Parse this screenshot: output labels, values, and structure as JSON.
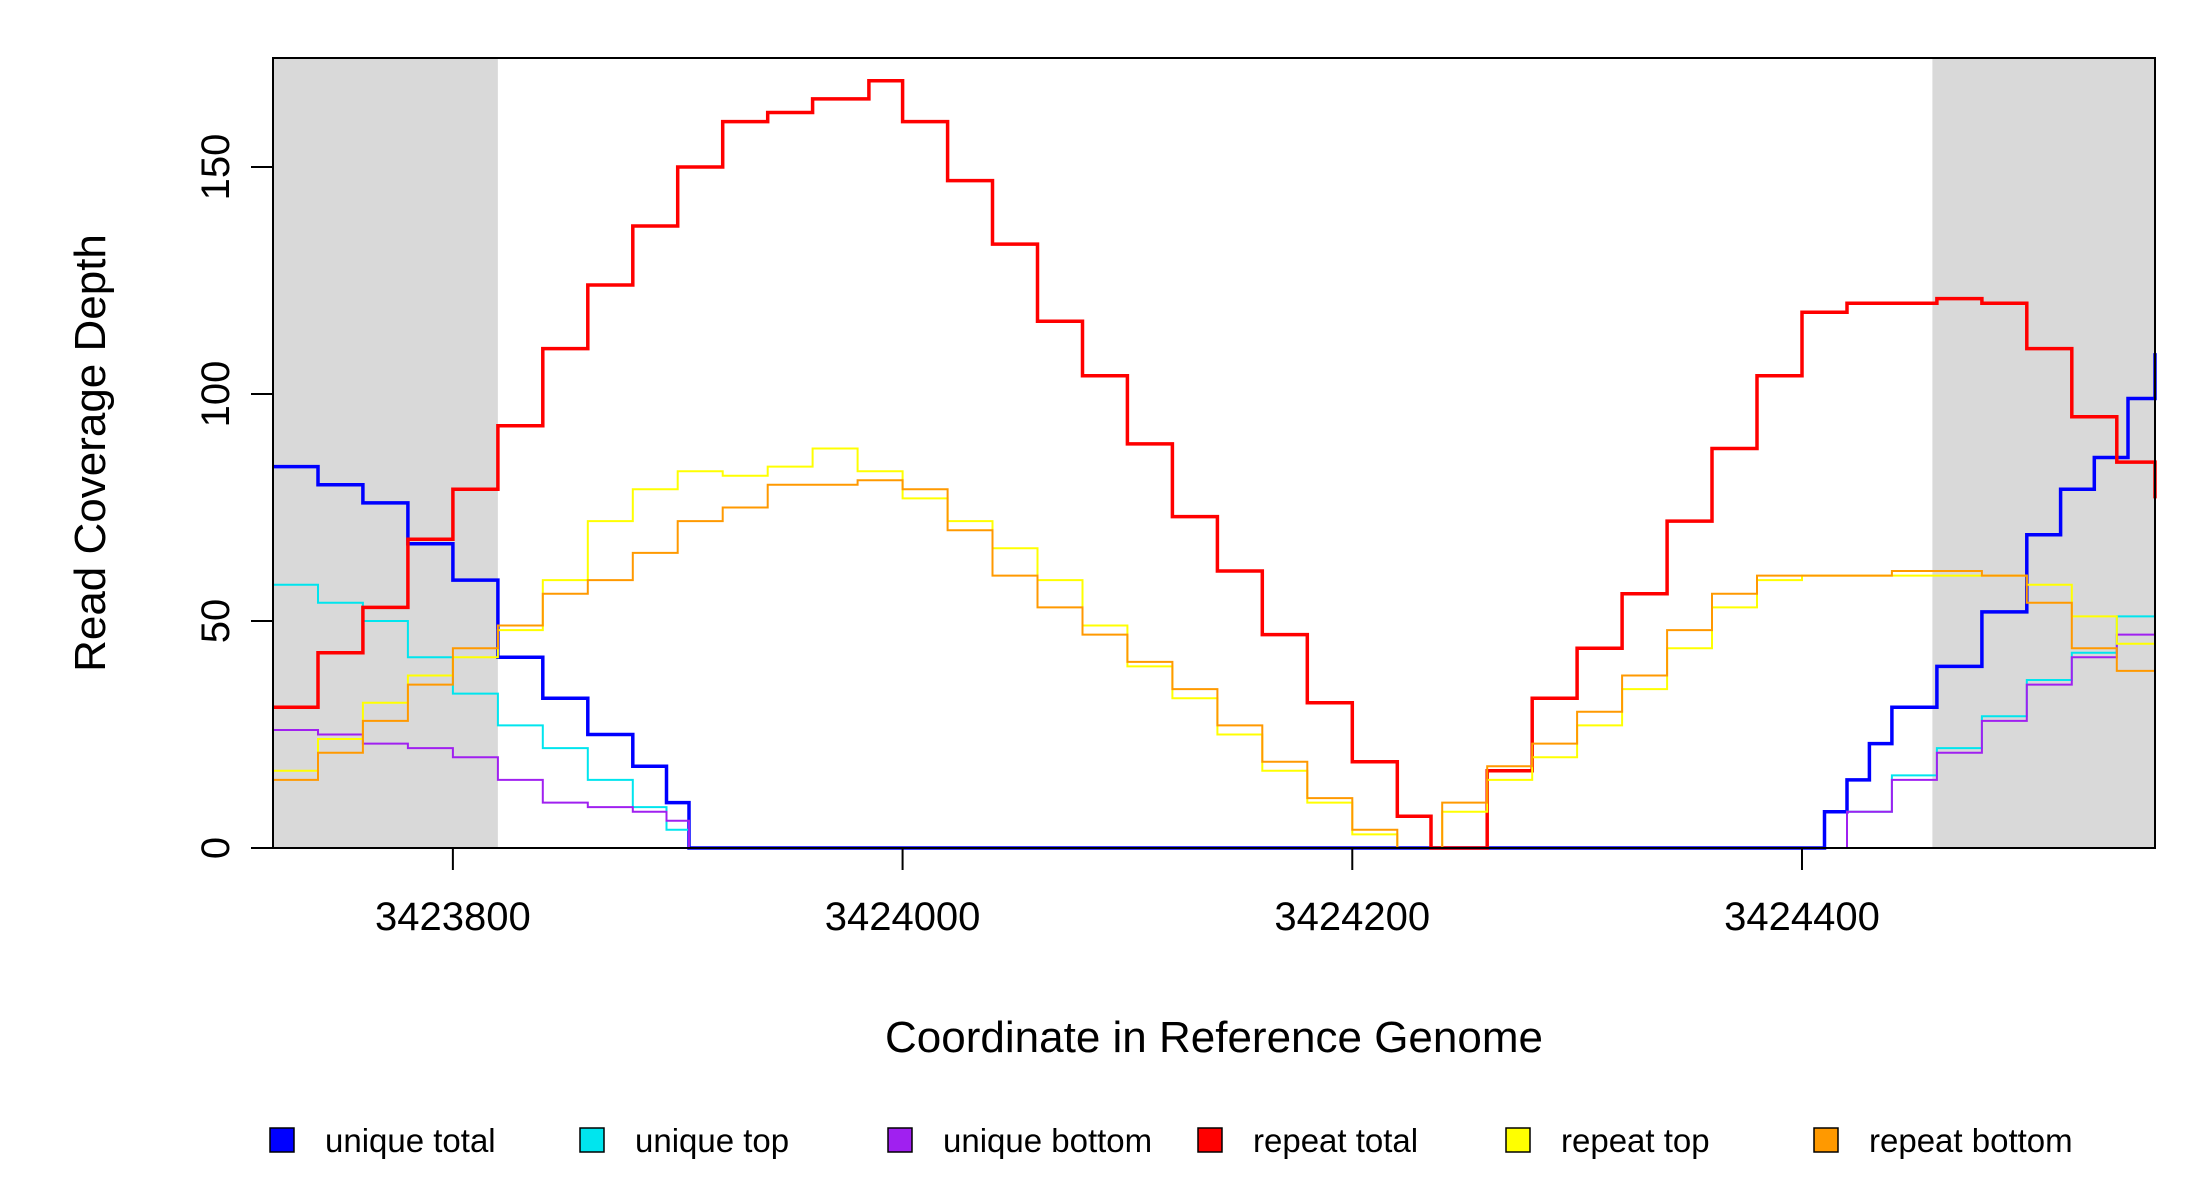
{
  "chart_data": {
    "type": "line",
    "title": "",
    "xlabel": "Coordinate in Reference Genome",
    "ylabel": "Read Coverage Depth",
    "xlim": [
      3423720,
      3424557
    ],
    "ylim": [
      0,
      174
    ],
    "x_ticks": [
      3423800,
      3424000,
      3424200,
      3424400
    ],
    "x_tick_labels": [
      "3423800",
      "3424000",
      "3424200",
      "3424400"
    ],
    "y_ticks": [
      0,
      50,
      100,
      150
    ],
    "y_tick_labels": [
      "0",
      "50",
      "100",
      "150"
    ],
    "shaded_regions": [
      {
        "x": [
          3423720,
          3423820
        ],
        "color": "#d9d9d9"
      },
      {
        "x": [
          3424458,
          3424557
        ],
        "color": "#d9d9d9"
      }
    ],
    "legend_position": "bottom",
    "series": [
      {
        "name": "unique total",
        "color": "#0000ff",
        "width": 3.5,
        "x": [
          3423720,
          3423740,
          3423760,
          3423780,
          3423800,
          3423820,
          3423840,
          3423860,
          3423880,
          3423895,
          3423905,
          3424000,
          3424100,
          3424200,
          3424300,
          3424405,
          3424410,
          3424420,
          3424430,
          3424440,
          3424460,
          3424480,
          3424500,
          3424515,
          3424530,
          3424545,
          3424557
        ],
        "y": [
          84,
          80,
          76,
          67,
          59,
          42,
          33,
          25,
          18,
          10,
          0,
          0,
          0,
          0,
          0,
          0,
          8,
          15,
          23,
          31,
          40,
          52,
          69,
          79,
          86,
          99,
          109
        ]
      },
      {
        "name": "unique top",
        "color": "#00e5ee",
        "width": 2,
        "x": [
          3423720,
          3423740,
          3423760,
          3423780,
          3423800,
          3423820,
          3423840,
          3423860,
          3423880,
          3423895,
          3423905,
          3424000,
          3424100,
          3424200,
          3424300,
          3424405,
          3424420,
          3424440,
          3424460,
          3424480,
          3424500,
          3424520,
          3424540,
          3424557
        ],
        "y": [
          58,
          54,
          50,
          42,
          34,
          27,
          22,
          15,
          9,
          4,
          0,
          0,
          0,
          0,
          0,
          0,
          8,
          16,
          22,
          29,
          37,
          43,
          51,
          55
        ]
      },
      {
        "name": "unique bottom",
        "color": "#a020f0",
        "width": 2,
        "x": [
          3423720,
          3423740,
          3423760,
          3423780,
          3423800,
          3423820,
          3423840,
          3423860,
          3423880,
          3423895,
          3423905,
          3424000,
          3424100,
          3424200,
          3424300,
          3424405,
          3424420,
          3424440,
          3424460,
          3424480,
          3424500,
          3424520,
          3424540,
          3424557
        ],
        "y": [
          26,
          25,
          23,
          22,
          20,
          15,
          10,
          9,
          8,
          6,
          0,
          0,
          0,
          0,
          0,
          0,
          8,
          15,
          21,
          28,
          36,
          42,
          47,
          54
        ]
      },
      {
        "name": "repeat total",
        "color": "#ff0000",
        "width": 3.5,
        "x": [
          3423720,
          3423740,
          3423760,
          3423780,
          3423800,
          3423820,
          3423840,
          3423860,
          3423880,
          3423900,
          3423920,
          3423940,
          3423960,
          3423980,
          3423985,
          3424000,
          3424020,
          3424040,
          3424060,
          3424080,
          3424100,
          3424120,
          3424140,
          3424160,
          3424180,
          3424200,
          3424220,
          3424235,
          3424240,
          3424260,
          3424280,
          3424300,
          3424320,
          3424340,
          3424360,
          3424380,
          3424400,
          3424420,
          3424440,
          3424460,
          3424480,
          3424500,
          3424520,
          3424540,
          3424557
        ],
        "y": [
          31,
          43,
          53,
          68,
          79,
          93,
          110,
          124,
          137,
          150,
          160,
          162,
          165,
          165,
          169,
          160,
          147,
          133,
          116,
          104,
          89,
          73,
          61,
          47,
          32,
          19,
          7,
          0,
          0,
          17,
          33,
          44,
          56,
          72,
          88,
          104,
          118,
          120,
          120,
          121,
          120,
          110,
          95,
          85,
          77
        ]
      },
      {
        "name": "repeat top",
        "color": "#ffff00",
        "width": 2,
        "x": [
          3423720,
          3423740,
          3423760,
          3423780,
          3423800,
          3423820,
          3423840,
          3423860,
          3423880,
          3423900,
          3423920,
          3423940,
          3423960,
          3423980,
          3424000,
          3424020,
          3424040,
          3424060,
          3424080,
          3424100,
          3424120,
          3424140,
          3424160,
          3424180,
          3424200,
          3424220,
          3424240,
          3424260,
          3424280,
          3424300,
          3424320,
          3424340,
          3424360,
          3424380,
          3424400,
          3424420,
          3424440,
          3424460,
          3424480,
          3424500,
          3424520,
          3424540,
          3424557
        ],
        "y": [
          17,
          24,
          32,
          38,
          42,
          48,
          59,
          72,
          79,
          83,
          82,
          84,
          88,
          83,
          77,
          72,
          66,
          59,
          49,
          40,
          33,
          25,
          17,
          10,
          3,
          0,
          8,
          15,
          20,
          27,
          35,
          44,
          53,
          59,
          60,
          60,
          60,
          60,
          60,
          58,
          51,
          45,
          40
        ]
      },
      {
        "name": "repeat bottom",
        "color": "#ff9900",
        "width": 2,
        "x": [
          3423720,
          3423740,
          3423760,
          3423780,
          3423800,
          3423820,
          3423840,
          3423860,
          3423880,
          3423900,
          3423920,
          3423940,
          3423960,
          3423980,
          3424000,
          3424020,
          3424040,
          3424060,
          3424080,
          3424100,
          3424120,
          3424140,
          3424160,
          3424180,
          3424200,
          3424220,
          3424240,
          3424260,
          3424280,
          3424300,
          3424320,
          3424340,
          3424360,
          3424380,
          3424400,
          3424420,
          3424440,
          3424460,
          3424480,
          3424500,
          3424520,
          3424540,
          3424557
        ],
        "y": [
          15,
          21,
          28,
          36,
          44,
          49,
          56,
          59,
          65,
          72,
          75,
          80,
          80,
          81,
          79,
          70,
          60,
          53,
          47,
          41,
          35,
          27,
          19,
          11,
          4,
          0,
          10,
          18,
          23,
          30,
          38,
          48,
          56,
          60,
          60,
          60,
          61,
          61,
          60,
          54,
          44,
          39,
          37
        ]
      }
    ]
  }
}
